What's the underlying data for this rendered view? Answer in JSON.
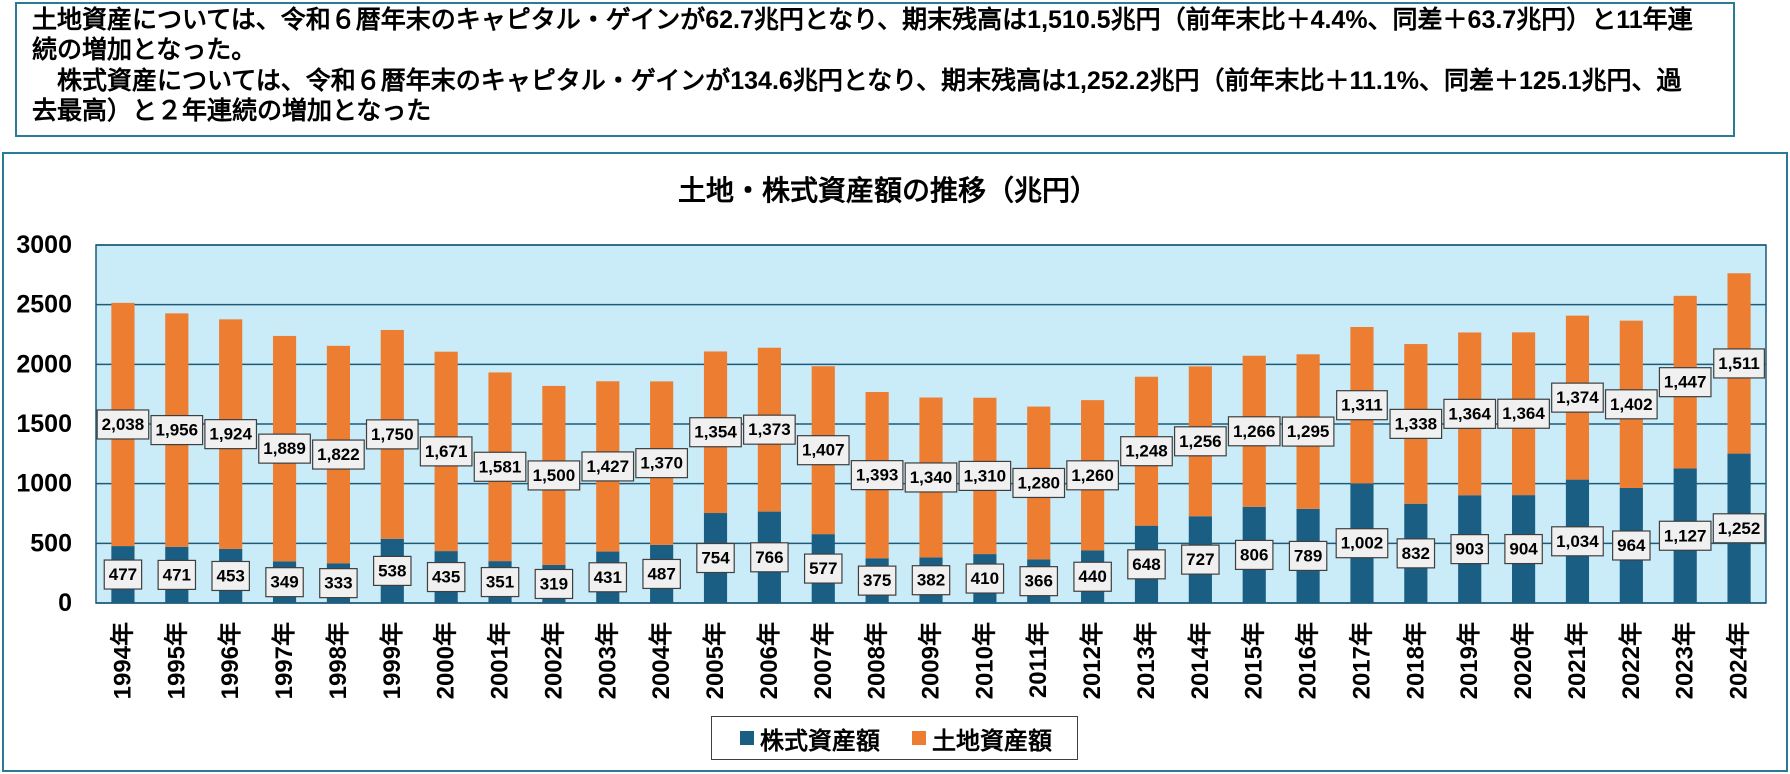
{
  "summary_box": {
    "paragraphs": [
      "土地資産については、令和６暦年末のキャピタル・ゲインが62.7兆円となり、期末残高は1,510.5兆円（前年末比＋4.4%、同差＋63.7兆円）と11年連続の増加となった。",
      "株式資産については、令和６暦年末のキャピタル・ゲインが134.6兆円となり、期末残高は1,252.2兆円（前年末比＋11.1%、同差＋125.1兆円、過去最高）と２年連続の増加となった"
    ]
  },
  "theme": {
    "frame_border": "#2a7b96",
    "plot_background": "#c9ecf8",
    "gridline": "#1f5a78",
    "label_fill": "#f0f0f0",
    "label_border": "#3f3f3f",
    "legend_border": "#3f3f3f"
  },
  "chart_data": {
    "type": "bar",
    "stacked": true,
    "title": "土地・株式資産額の推移（兆円）",
    "categories": [
      "1994年",
      "1995年",
      "1996年",
      "1997年",
      "1998年",
      "1999年",
      "2000年",
      "2001年",
      "2002年",
      "2003年",
      "2004年",
      "2005年",
      "2006年",
      "2007年",
      "2008年",
      "2009年",
      "2010年",
      "2011年",
      "2012年",
      "2013年",
      "2014年",
      "2015年",
      "2016年",
      "2017年",
      "2018年",
      "2019年",
      "2020年",
      "2021年",
      "2022年",
      "2023年",
      "2024年"
    ],
    "series": [
      {
        "name": "株式資産額",
        "color": "#1a5f83",
        "values": [
          477,
          471,
          453,
          349,
          333,
          538,
          435,
          351,
          319,
          431,
          487,
          754,
          766,
          577,
          375,
          382,
          410,
          366,
          440,
          648,
          727,
          806,
          789,
          1002,
          832,
          903,
          904,
          1034,
          964,
          1127,
          1252
        ]
      },
      {
        "name": "土地資産額",
        "color": "#ed7d31",
        "values": [
          2038,
          1956,
          1924,
          1889,
          1822,
          1750,
          1671,
          1581,
          1500,
          1427,
          1370,
          1354,
          1373,
          1407,
          1393,
          1340,
          1310,
          1280,
          1260,
          1248,
          1256,
          1266,
          1295,
          1311,
          1338,
          1364,
          1364,
          1374,
          1402,
          1447,
          1511
        ]
      }
    ],
    "ylim": [
      0,
      3000
    ],
    "yticks": [
      0,
      500,
      1000,
      1500,
      2000,
      2500,
      3000
    ],
    "grid": true,
    "data_labels": true,
    "legend_position": "bottom"
  }
}
